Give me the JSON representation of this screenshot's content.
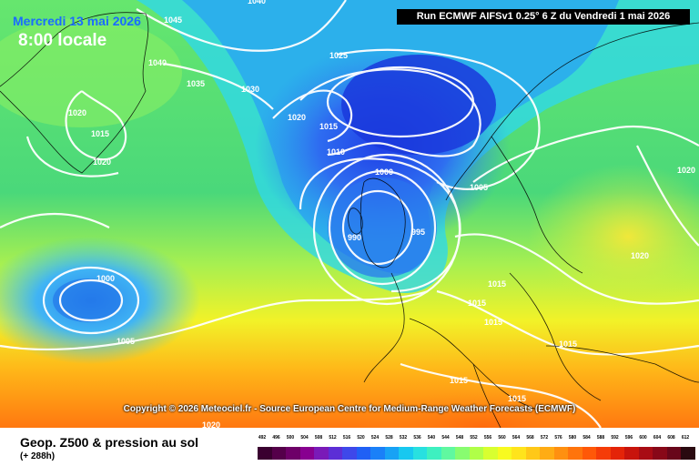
{
  "header": {
    "date": "Mercredi 13 mai 2026",
    "time": "8:00 locale",
    "run": "Run ECMWF AIFSv1 0.25° 6 Z du Vendredi 1 mai 2026"
  },
  "copyright": "Copyright © 2026 Meteociel.fr - Source European Centre for Medium-Range Weather Forecasts (ECMWF)",
  "footer": {
    "title": "Geop. Z500 & pression au sol",
    "subtitle": "(+ 288h)"
  },
  "scale_ticks": [
    "492",
    "496",
    "500",
    "504",
    "508",
    "512",
    "516",
    "520",
    "524",
    "528",
    "532",
    "536",
    "540",
    "544",
    "548",
    "552",
    "556",
    "560",
    "564",
    "568",
    "572",
    "576",
    "580",
    "584",
    "588",
    "592",
    "596",
    "600",
    "604",
    "608",
    "612"
  ],
  "scale_colors": [
    "#3a0030",
    "#55004a",
    "#6e0068",
    "#880090",
    "#7a1ab8",
    "#5c2ed6",
    "#3e48ea",
    "#2060f5",
    "#1a80f8",
    "#18a2f5",
    "#18c8f0",
    "#28e0e0",
    "#3ef0c0",
    "#60f8a0",
    "#88fc70",
    "#b0ff48",
    "#d8ff30",
    "#f8fa20",
    "#ffe41c",
    "#ffc818",
    "#ffac14",
    "#ff9010",
    "#ff740c",
    "#ff5808",
    "#f53c08",
    "#e42408",
    "#c8140c",
    "#a80c14",
    "#880818",
    "#68061a",
    "#2a0a10"
  ],
  "pressure_labels": [
    "1045",
    "1040",
    "1040",
    "1035",
    "1030",
    "1025",
    "1020",
    "1015",
    "1020",
    "1020",
    "1015",
    "1010",
    "1000",
    "995",
    "990",
    "1005",
    "1000",
    "1005",
    "1015",
    "1015",
    "1015",
    "1015",
    "1020",
    "1020",
    "1015",
    "1015",
    "1020"
  ]
}
